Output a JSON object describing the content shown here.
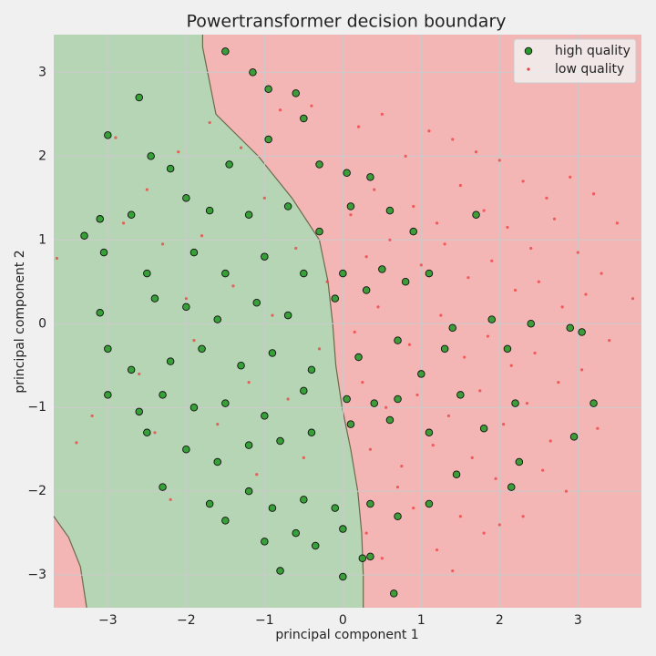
{
  "chart_data": {
    "type": "scatter",
    "title": "Powertransformer decision boundary",
    "x_label": "principal component 1",
    "y_label": "principal component 2",
    "xlim": [
      -3.69,
      3.81
    ],
    "ylim": [
      -3.39,
      3.45
    ],
    "xticks": [
      {
        "value": -3,
        "label": "−3"
      },
      {
        "value": -2,
        "label": "−2"
      },
      {
        "value": -1,
        "label": "−1"
      },
      0,
      1,
      2,
      3
    ],
    "yticks": [
      {
        "value": -3,
        "label": "−3"
      },
      {
        "value": -2,
        "label": "−2"
      },
      {
        "value": -1,
        "label": "−1"
      },
      0,
      1,
      2,
      3
    ],
    "grid": true,
    "legend": "upper right",
    "region_colors": {
      "high": "#b5d5b5",
      "low": "#f4b5b5",
      "edge": "#6b6b4a"
    },
    "boundary": {
      "main": {
        "x": [
          -1.79,
          -1.79,
          -1.62,
          -1.08,
          -0.65,
          -0.3,
          -0.19,
          -0.13,
          -0.09,
          -0.01,
          0.1,
          0.19,
          0.24,
          0.26,
          0.26
        ],
        "y": [
          3.45,
          3.3,
          2.5,
          2,
          1.5,
          1,
          0.5,
          0,
          -0.5,
          -1,
          -1.5,
          -2,
          -2.5,
          -3,
          -3.39
        ]
      },
      "corner": {
        "x": [
          -3.69,
          -3.5,
          -3.35,
          -3.27
        ],
        "y": [
          -2.3,
          -2.55,
          -2.9,
          -3.39
        ]
      }
    },
    "series": [
      {
        "name": "high quality",
        "color": "#2a9a2a",
        "x": [
          -2.6,
          -3.0,
          -1.5,
          -1.15,
          -0.95,
          -0.6,
          -0.5,
          -2.45,
          -1.45,
          -0.95,
          -0.3,
          0.05,
          0.35,
          -3.3,
          -3.1,
          -2.7,
          -2.2,
          -2.0,
          -1.7,
          -1.2,
          -0.7,
          -0.3,
          0.1,
          0.6,
          0.9,
          -3.05,
          -2.5,
          -1.9,
          -1.5,
          -1.0,
          -0.5,
          0.0,
          0.5,
          1.1,
          1.7,
          -3.1,
          -2.4,
          -2.0,
          -1.6,
          -1.1,
          -0.7,
          -0.1,
          0.3,
          0.8,
          1.4,
          1.9,
          2.4,
          -3.0,
          -2.7,
          -2.2,
          -1.8,
          -1.3,
          -0.9,
          -0.4,
          0.2,
          0.7,
          1.0,
          1.3,
          2.1,
          2.9,
          3.05,
          -3.0,
          -2.6,
          -2.3,
          -1.9,
          -1.5,
          -1.0,
          -0.5,
          0.05,
          0.4,
          0.7,
          1.5,
          2.2,
          3.2,
          -2.5,
          -2.0,
          -1.6,
          -1.2,
          -0.8,
          -0.4,
          0.1,
          0.6,
          1.1,
          1.8,
          2.95,
          -2.3,
          -1.7,
          -1.2,
          -0.9,
          -0.5,
          -0.1,
          0.35,
          0.7,
          1.1,
          2.25,
          -1.5,
          -1.0,
          -0.6,
          -0.35,
          0.0,
          0.25,
          0.35,
          -0.8,
          0.0,
          0.65,
          2.15,
          1.45
        ],
        "y": [
          2.7,
          2.25,
          3.25,
          3.0,
          2.8,
          2.75,
          2.45,
          2.0,
          1.9,
          2.2,
          1.9,
          1.8,
          1.75,
          1.05,
          1.25,
          1.3,
          1.85,
          1.5,
          1.35,
          1.3,
          1.4,
          1.1,
          1.4,
          1.35,
          1.1,
          0.85,
          0.6,
          0.85,
          0.6,
          0.8,
          0.6,
          0.6,
          0.65,
          0.6,
          1.3,
          0.13,
          0.3,
          0.2,
          0.05,
          0.25,
          0.1,
          0.3,
          0.4,
          0.5,
          -0.05,
          0.05,
          0.0,
          -0.3,
          -0.55,
          -0.45,
          -0.3,
          -0.5,
          -0.35,
          -0.55,
          -0.4,
          -0.2,
          -0.6,
          -0.3,
          -0.3,
          -0.05,
          -0.1,
          -0.85,
          -1.05,
          -0.85,
          -1.0,
          -0.95,
          -1.1,
          -0.8,
          -0.9,
          -0.95,
          -0.9,
          -0.85,
          -0.95,
          -0.95,
          -1.3,
          -1.5,
          -1.65,
          -1.45,
          -1.4,
          -1.3,
          -1.2,
          -1.15,
          -1.3,
          -1.25,
          -1.35,
          -1.95,
          -2.15,
          -2.0,
          -2.2,
          -2.1,
          -2.2,
          -2.15,
          -2.3,
          -2.15,
          -1.65,
          -2.35,
          -2.6,
          -2.5,
          -2.65,
          -2.45,
          -2.8,
          -2.78,
          -2.95,
          -3.02,
          -3.22,
          -1.95,
          -1.8
        ]
      },
      {
        "name": "low quality",
        "color": "#f03c3c",
        "x": [
          -3.65,
          -3.4,
          -2.9,
          -2.5,
          -2.1,
          -1.7,
          -1.3,
          -0.8,
          -0.4,
          0.2,
          0.5,
          0.8,
          1.1,
          1.4,
          1.7,
          2.0,
          2.3,
          2.6,
          2.9,
          3.2,
          3.5,
          3.7,
          -2.8,
          -2.3,
          -1.8,
          -1.0,
          -0.6,
          0.1,
          0.4,
          0.9,
          1.2,
          1.5,
          1.8,
          2.1,
          2.4,
          2.7,
          3.0,
          3.3,
          -2.0,
          -1.4,
          -0.9,
          -0.2,
          0.3,
          0.6,
          1.0,
          1.3,
          1.6,
          1.9,
          2.2,
          2.5,
          2.8,
          3.1,
          3.4,
          -2.6,
          -1.9,
          -1.2,
          -0.3,
          0.15,
          0.45,
          0.85,
          1.25,
          1.55,
          1.85,
          2.15,
          2.45,
          2.75,
          3.05,
          -3.2,
          -2.4,
          -1.6,
          -0.7,
          0.25,
          0.55,
          0.95,
          1.35,
          1.75,
          2.05,
          2.35,
          2.65,
          3.25,
          -2.2,
          -1.1,
          -0.5,
          0.35,
          0.75,
          1.15,
          1.65,
          1.95,
          2.55,
          2.85,
          0.3,
          0.9,
          1.5,
          2.0,
          0.5,
          1.2,
          1.8,
          0.7,
          1.4,
          2.3
        ],
        "y": [
          0.78,
          -1.42,
          2.22,
          1.6,
          2.05,
          2.4,
          2.1,
          2.55,
          2.6,
          2.35,
          2.5,
          2.0,
          2.3,
          2.2,
          2.05,
          1.95,
          1.7,
          1.5,
          1.75,
          1.55,
          1.2,
          0.3,
          1.2,
          0.95,
          1.05,
          1.5,
          0.9,
          1.3,
          1.6,
          1.4,
          1.2,
          1.65,
          1.35,
          1.15,
          0.9,
          1.25,
          0.85,
          0.6,
          0.3,
          0.45,
          0.1,
          0.5,
          0.8,
          1.0,
          0.7,
          0.95,
          0.55,
          0.75,
          0.4,
          0.5,
          0.2,
          0.35,
          -0.2,
          -0.6,
          -0.2,
          -0.7,
          -0.3,
          -0.1,
          0.2,
          -0.25,
          0.1,
          -0.4,
          -0.15,
          -0.5,
          -0.35,
          -0.7,
          -0.55,
          -1.1,
          -1.3,
          -1.2,
          -0.9,
          -0.7,
          -1.0,
          -0.85,
          -1.1,
          -0.8,
          -1.2,
          -0.95,
          -1.4,
          -1.25,
          -2.1,
          -1.8,
          -1.6,
          -1.5,
          -1.7,
          -1.45,
          -1.6,
          -1.85,
          -1.75,
          -2.0,
          -2.5,
          -2.2,
          -2.3,
          -2.4,
          -2.8,
          -2.7,
          -2.5,
          -1.95,
          -2.95,
          -2.3
        ]
      }
    ]
  }
}
